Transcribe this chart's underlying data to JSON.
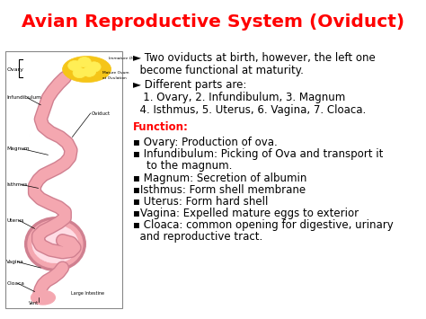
{
  "title": "Avian Reproductive System (Oviduct)",
  "title_color": "#FF0000",
  "bg_color": "#FFFFFF",
  "text_color": "#000000",
  "function_color": "#FF0000",
  "function_label": "Function:",
  "line1": "► Two oviducts at birth, however, the left one",
  "line2": "  become functional at maturity.",
  "line3": "► Different parts are:",
  "line4": "   1. Ovary, 2. Infundibulum, 3. Magnum",
  "line5": "  4. Isthmus, 5. Uterus, 6. Vagina, 7. Cloaca.",
  "bullets": [
    "▪ Ovary: Production of ova.",
    "▪ Infundibulum: Picking of Ova and transport it",
    "    to the magnum.",
    "▪ Magnum: Secretion of albumin",
    "▪Isthmus: Form shell membrane",
    "▪ Uterus: Form hard shell",
    "▪Vagina: Expelled mature eggs to exterior",
    "▪ Cloaca: common opening for digestive, urinary",
    "  and reproductive tract."
  ],
  "fig_width": 4.74,
  "fig_height": 3.55,
  "dpi": 100
}
